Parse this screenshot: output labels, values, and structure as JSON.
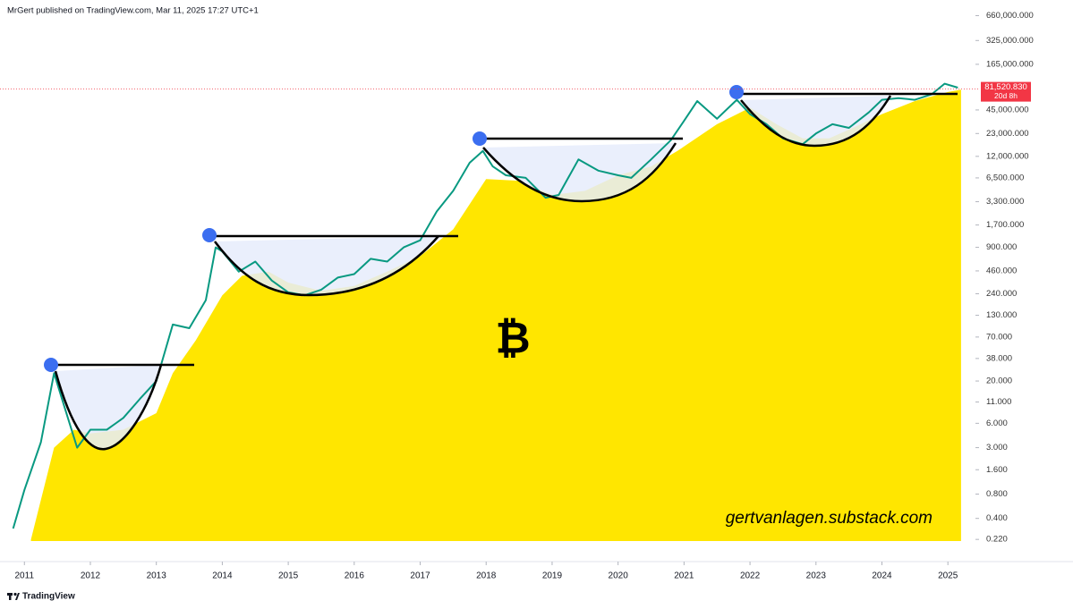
{
  "header": "MrGert published on TradingView.com, Mar 11, 2025 17:27 UTC+1",
  "footer": "TradingView",
  "chart_data": {
    "type": "line",
    "symbol": "₿",
    "watermark": "gertvanlagen.substack.com",
    "log_scale": true,
    "xlim": [
      2010.63,
      2025.35
    ],
    "xticks": [
      2011,
      2012,
      2013,
      2014,
      2015,
      2016,
      2017,
      2018,
      2019,
      2020,
      2021,
      2022,
      2023,
      2024,
      2025
    ],
    "ylim": [
      0.21,
      1030000
    ],
    "yticks": [
      {
        "value": 0.22,
        "label": "0.220"
      },
      {
        "value": 0.4,
        "label": "0.400"
      },
      {
        "value": 0.8,
        "label": "0.800"
      },
      {
        "value": 1.6,
        "label": "1.600"
      },
      {
        "value": 3,
        "label": "3.000"
      },
      {
        "value": 6,
        "label": "6.000"
      },
      {
        "value": 11,
        "label": "11.000"
      },
      {
        "value": 20,
        "label": "20.000"
      },
      {
        "value": 38,
        "label": "38.000"
      },
      {
        "value": 70,
        "label": "70.000"
      },
      {
        "value": 130,
        "label": "130.000"
      },
      {
        "value": 240,
        "label": "240.000"
      },
      {
        "value": 460,
        "label": "460.000"
      },
      {
        "value": 900,
        "label": "900.000"
      },
      {
        "value": 1700,
        "label": "1,700.000"
      },
      {
        "value": 3300,
        "label": "3,300.000"
      },
      {
        "value": 6500,
        "label": "6,500.000"
      },
      {
        "value": 12000,
        "label": "12,000.000"
      },
      {
        "value": 23000,
        "label": "23,000.000"
      },
      {
        "value": 45000,
        "label": "45,000.000"
      },
      {
        "value": 165000,
        "label": "165,000.000"
      },
      {
        "value": 325000,
        "label": "325,000.000"
      },
      {
        "value": 660000,
        "label": "660,000.000"
      }
    ],
    "last_price": {
      "value": 81520.83,
      "label": "81,520.830"
    },
    "countdown": "20d 8h",
    "series": [
      {
        "color": "#ffe600",
        "fill": true,
        "x": [
          2011.1,
          2011.45,
          2011.75,
          2012.0,
          2012.5,
          2013.0,
          2013.25,
          2013.6,
          2014.0,
          2014.3,
          2014.7,
          2015.0,
          2015.5,
          2016.0,
          2016.5,
          2017.0,
          2017.5,
          2018.0,
          2018.5,
          2019.0,
          2019.5,
          2020.0,
          2020.5,
          2020.9,
          2021.5,
          2022.0,
          2022.4,
          2022.8,
          2023.2,
          2023.6,
          2024.0,
          2024.5,
          2025.0,
          2025.2
        ],
        "values": [
          0.22,
          3,
          5,
          4.5,
          5,
          8,
          25,
          64,
          230,
          400,
          450,
          330,
          260,
          300,
          450,
          700,
          1500,
          6300,
          6000,
          4000,
          4500,
          7000,
          9000,
          14000,
          30000,
          48000,
          30000,
          20000,
          20000,
          28000,
          40000,
          58000,
          75000,
          80000
        ]
      },
      {
        "color": "#089981",
        "x": [
          2010.83,
          2011.0,
          2011.25,
          2011.45,
          2011.6,
          2011.8,
          2012.0,
          2012.25,
          2012.5,
          2012.75,
          2013.0,
          2013.25,
          2013.5,
          2013.75,
          2013.9,
          2014.0,
          2014.25,
          2014.5,
          2014.75,
          2015.0,
          2015.25,
          2015.5,
          2015.75,
          2016.0,
          2016.25,
          2016.5,
          2016.75,
          2017.0,
          2017.25,
          2017.5,
          2017.75,
          2017.95,
          2018.1,
          2018.3,
          2018.6,
          2018.9,
          2019.1,
          2019.4,
          2019.7,
          2020.0,
          2020.2,
          2020.5,
          2020.8,
          2021.0,
          2021.2,
          2021.5,
          2021.8,
          2022.0,
          2022.25,
          2022.5,
          2022.8,
          2023.0,
          2023.25,
          2023.5,
          2023.8,
          2024.0,
          2024.25,
          2024.5,
          2024.75,
          2024.95,
          2025.15
        ],
        "values": [
          0.3,
          0.9,
          3.5,
          25,
          10,
          3,
          5,
          5,
          7,
          12,
          20,
          100,
          90,
          200,
          900,
          800,
          450,
          600,
          350,
          250,
          230,
          270,
          380,
          420,
          650,
          600,
          900,
          1100,
          2500,
          4500,
          10000,
          14000,
          9000,
          7000,
          6500,
          3700,
          4000,
          11000,
          8000,
          7000,
          6500,
          11000,
          19000,
          33000,
          58000,
          35000,
          60000,
          40000,
          30000,
          20000,
          17000,
          23000,
          30000,
          27000,
          42000,
          60000,
          63000,
          60000,
          70000,
          95000,
          85000
        ]
      }
    ]
  }
}
